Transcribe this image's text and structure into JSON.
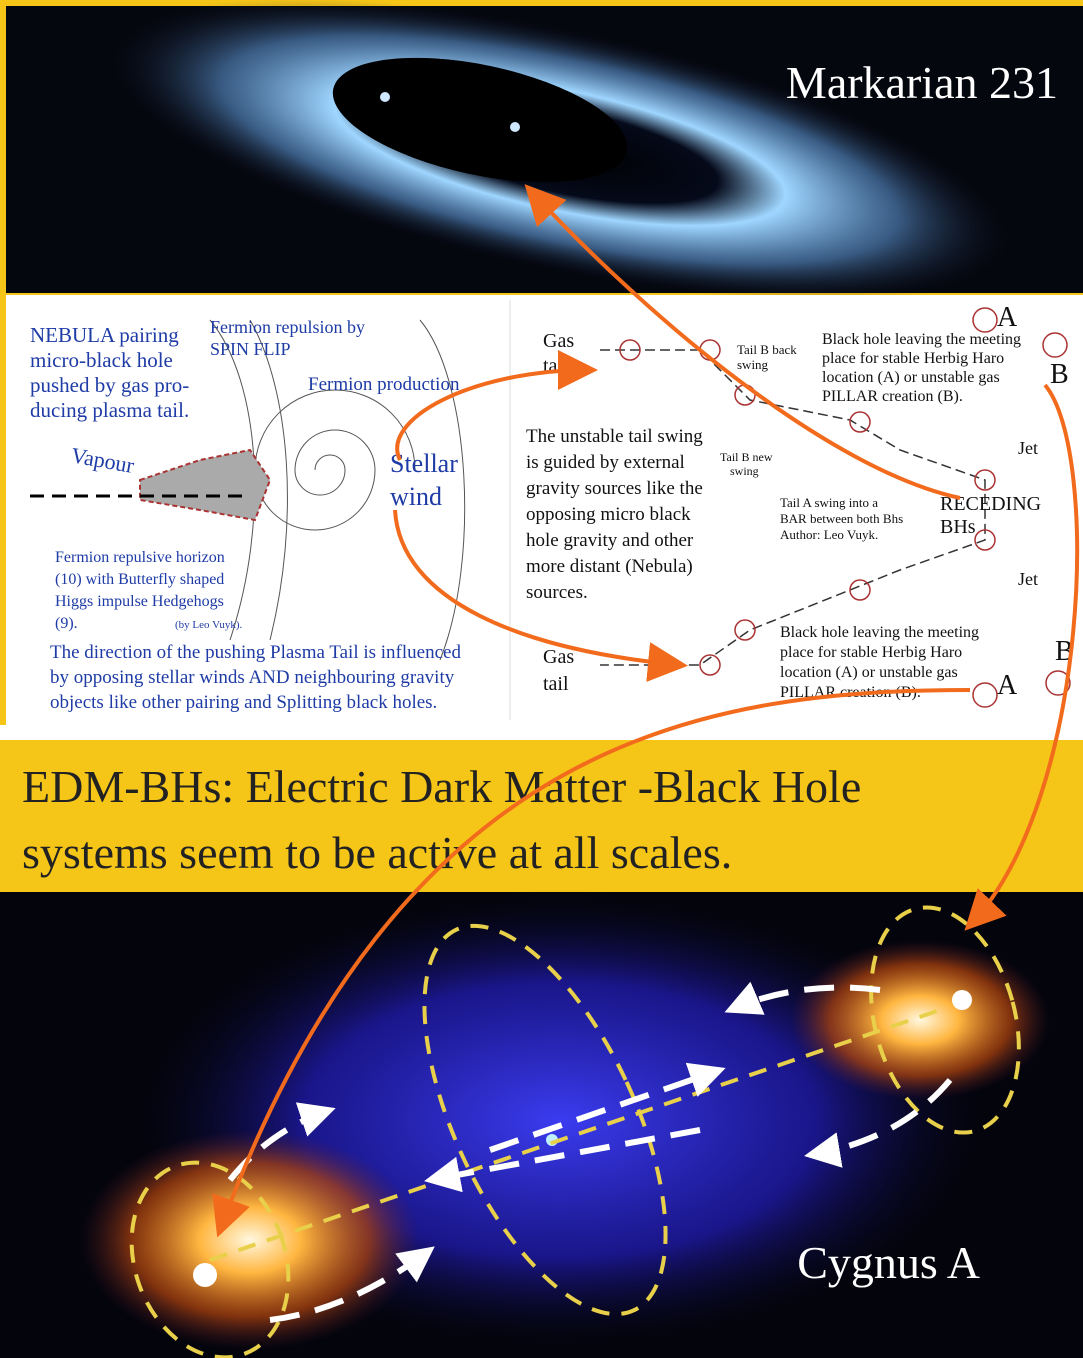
{
  "top_panel": {
    "label": "Markarian 231"
  },
  "left_diagram": {
    "intro": [
      "NEBULA pairing",
      "micro-black hole",
      "pushed by gas pro-",
      "ducing plasma tail."
    ],
    "spin_flip": [
      "Fermion repulsion by",
      "SPIN FLIP"
    ],
    "production": "Fermion production",
    "vapour": "Vapour",
    "stellar_wind": [
      "Stellar",
      "wind"
    ],
    "horizon": [
      "Fermion repulsive horizon",
      "(10) with Butterfly shaped",
      "Higgs impulse Hedgehogs",
      "(9)."
    ],
    "author": "(by Leo Vuyk).",
    "caption": [
      "The direction of the pushing Plasma Tail is influenced",
      "by opposing stellar winds AND neighbouring gravity",
      "objects like other pairing and Splitting black holes."
    ]
  },
  "right_diagram": {
    "gas_tail_top": [
      "Gas",
      "tail"
    ],
    "tail_b_back": [
      "Tail B back",
      "swing"
    ],
    "leaving_top": [
      "Black hole leaving the meeting",
      "place for stable Herbig Haro",
      "location (A) or unstable gas",
      "PILLAR creation (B)."
    ],
    "a_top": "A",
    "b_top": "B",
    "unstable": [
      "The unstable tail swing",
      "is guided by external",
      "gravity sources like the",
      "opposing micro black",
      "hole gravity and other",
      "more distant (Nebula)",
      "sources."
    ],
    "tail_b_new": [
      "Tail B new",
      "swing"
    ],
    "jet_top": "Jet",
    "receding": [
      "RECEDING",
      "BHs"
    ],
    "tail_a": [
      "Tail A swing into a",
      "BAR between both Bhs",
      "Author: Leo Vuyk."
    ],
    "jet_bottom": "Jet",
    "leaving_bottom": [
      "Black hole leaving the meeting",
      "place for stable Herbig Haro",
      "location (A) or unstable gas",
      "PILLAR creation (B)."
    ],
    "gas_tail_bottom": [
      "Gas",
      "tail"
    ],
    "a_bottom": "A",
    "b_bottom": "B"
  },
  "banner": {
    "lines": [
      "EDM-BHs: Electric Dark Matter -Black Hole",
      "systems seem to be active at all scales."
    ]
  },
  "bottom_panel": {
    "label": "Cygnus A"
  }
}
